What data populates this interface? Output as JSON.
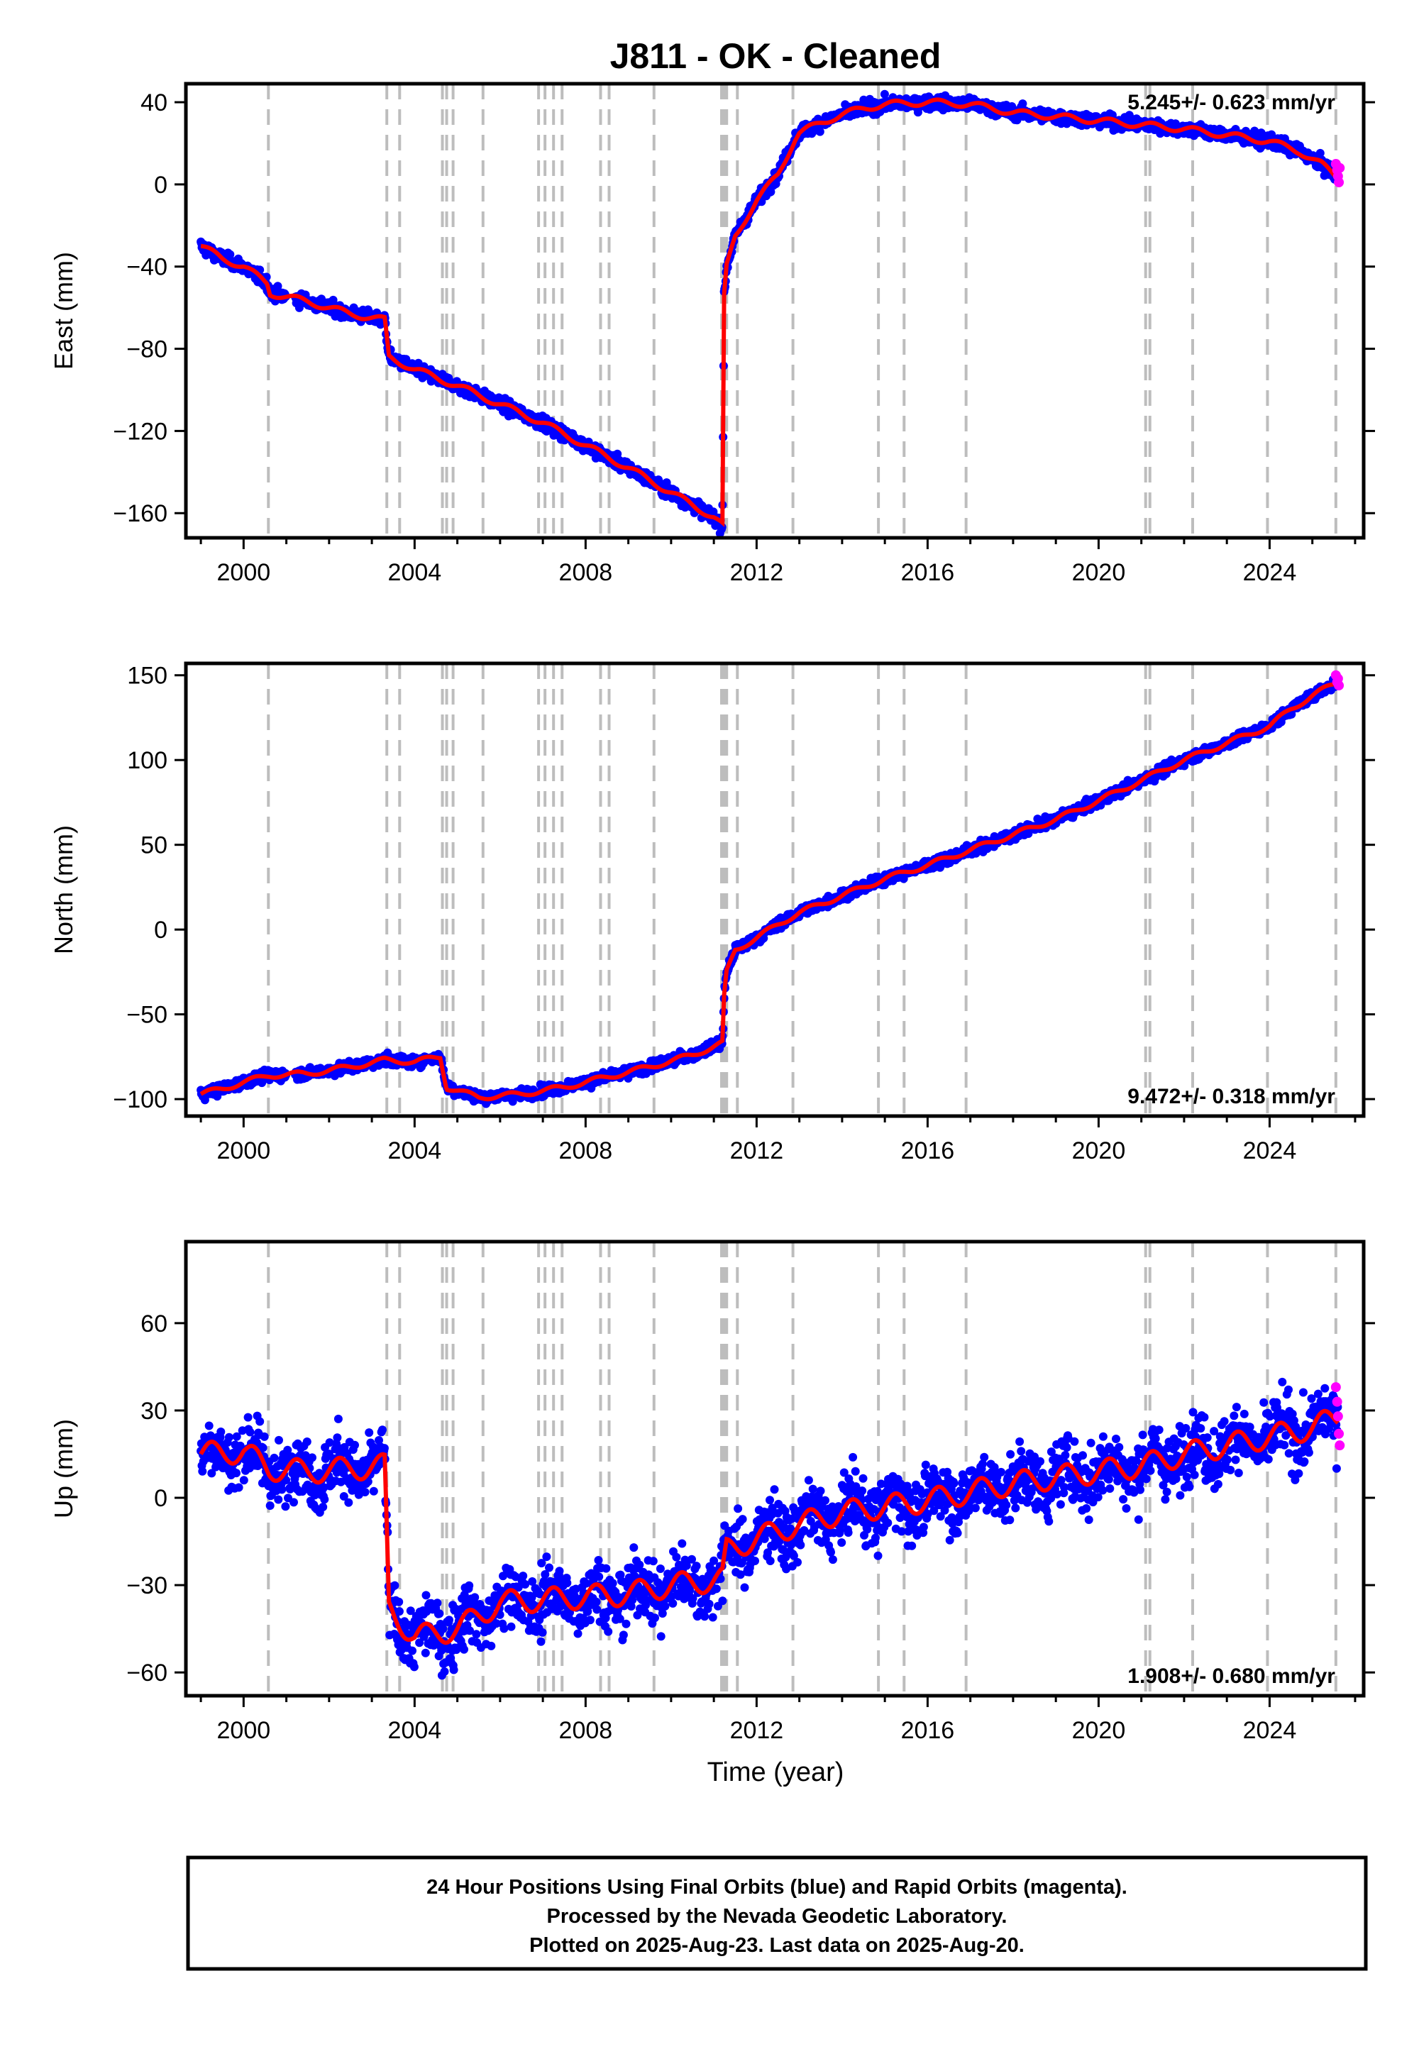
{
  "title": "J811  - OK - Cleaned",
  "xlabel": "Time (year)",
  "colors": {
    "final_orbits": "#0000ff",
    "rapid_orbits": "#ff00ff",
    "model": "#ff0000",
    "event_lines": "#bdbdbd"
  },
  "chart_data": [
    {
      "type": "scatter",
      "panel": "east",
      "ylabel": "East (mm)",
      "xlim": [
        1998.65,
        2026.2
      ],
      "ylim": [
        -172,
        49
      ],
      "xticks": [
        2000,
        2004,
        2008,
        2012,
        2016,
        2020,
        2024
      ],
      "xtick_labels": [
        "2000",
        "2004",
        "2008",
        "2012",
        "2016",
        "2020",
        "2024"
      ],
      "yticks": [
        -160,
        -120,
        -80,
        -40,
        0,
        40
      ],
      "ytick_labels": [
        "−160",
        "−120",
        "−80",
        "−40",
        "0",
        "40"
      ],
      "rate_label": "5.245+/- 0.623 mm/yr",
      "rate_label_position": "top-right",
      "grid": false,
      "series": [
        {
          "x": [
            1999.0,
            1999.5,
            2000.0,
            2000.55,
            2000.62,
            2001.5,
            2002.5,
            2003.3,
            2003.4,
            2004.0,
            2005.0,
            2006.0,
            2007.0,
            2008.0,
            2009.0,
            2010.0,
            2011.0,
            2011.2,
            2011.24,
            2011.3,
            2011.5,
            2012.0,
            2012.5,
            2012.9,
            2013.0,
            2013.5,
            2014.0,
            2014.5,
            2015.0,
            2016.0,
            2017.0,
            2018.0,
            2019.0,
            2020.0,
            2021.0,
            2022.0,
            2023.0,
            2024.0,
            2024.7,
            2025.2,
            2025.6
          ],
          "y": [
            -30,
            -36,
            -40,
            -48,
            -53,
            -57,
            -63,
            -66,
            -84,
            -90,
            -98,
            -107,
            -116,
            -127,
            -138,
            -150,
            -162,
            -166,
            -55,
            -40,
            -25,
            -8,
            5,
            22,
            25,
            30,
            34,
            37,
            39,
            40,
            39,
            35,
            33,
            31,
            29,
            27,
            24,
            21,
            16,
            10,
            3
          ]
        }
      ]
    },
    {
      "type": "scatter",
      "panel": "north",
      "ylabel": "North (mm)",
      "xlim": [
        1998.65,
        2026.2
      ],
      "ylim": [
        -110,
        157
      ],
      "xticks": [
        2000,
        2004,
        2008,
        2012,
        2016,
        2020,
        2024
      ],
      "xtick_labels": [
        "2000",
        "2004",
        "2008",
        "2012",
        "2016",
        "2020",
        "2024"
      ],
      "yticks": [
        -100,
        -50,
        0,
        50,
        100,
        150
      ],
      "ytick_labels": [
        "−100",
        "−50",
        "0",
        "50",
        "100",
        "150"
      ],
      "rate_label": "9.472+/- 0.318 mm/yr",
      "rate_label_position": "bottom-right",
      "grid": false,
      "series": [
        {
          "x": [
            1999.0,
            1999.5,
            2000.0,
            2000.6,
            2001.5,
            2002.5,
            2003.3,
            2004.0,
            2004.6,
            2004.75,
            2005.5,
            2006.5,
            2007.5,
            2008.5,
            2009.5,
            2010.5,
            2011.2,
            2011.24,
            2011.3,
            2011.5,
            2012.0,
            2012.5,
            2013.0,
            2014.0,
            2015.0,
            2016.0,
            2017.0,
            2018.0,
            2019.0,
            2020.0,
            2021.0,
            2022.0,
            2023.0,
            2024.0,
            2024.5,
            2025.0,
            2025.6
          ],
          "y": [
            -97,
            -94,
            -90,
            -86,
            -85,
            -81,
            -77,
            -78,
            -75,
            -93,
            -99,
            -97,
            -93,
            -87,
            -81,
            -74,
            -67,
            -40,
            -25,
            -12,
            -5,
            3,
            10,
            20,
            30,
            38,
            47,
            56,
            65,
            76,
            88,
            100,
            110,
            120,
            130,
            138,
            146
          ]
        }
      ]
    },
    {
      "type": "scatter",
      "panel": "up",
      "ylabel": "Up (mm)",
      "xlim": [
        1998.65,
        2026.2
      ],
      "ylim": [
        -68,
        88
      ],
      "xticks": [
        2000,
        2004,
        2008,
        2012,
        2016,
        2020,
        2024
      ],
      "xtick_labels": [
        "2000",
        "2004",
        "2008",
        "2012",
        "2016",
        "2020",
        "2024"
      ],
      "yticks": [
        -60,
        -30,
        0,
        30,
        60
      ],
      "ytick_labels": [
        "−60",
        "−30",
        "0",
        "30",
        "60"
      ],
      "rate_label": "1.908+/- 0.680 mm/yr",
      "rate_label_position": "bottom-right",
      "grid": false,
      "series": [
        {
          "x": [
            1999.0,
            2000.0,
            2000.6,
            2001.5,
            2002.5,
            2003.3,
            2003.4,
            2004.0,
            2005.0,
            2006.0,
            2007.0,
            2008.0,
            2009.0,
            2010.0,
            2011.2,
            2011.3,
            2012.0,
            2013.0,
            2014.0,
            2015.0,
            2016.0,
            2017.0,
            2018.0,
            2019.0,
            2020.0,
            2021.0,
            2022.0,
            2023.0,
            2024.0,
            2025.0,
            2025.6
          ],
          "y": [
            15,
            16,
            10,
            9,
            10,
            11,
            -38,
            -48,
            -45,
            -36,
            -35,
            -34,
            -33,
            -30,
            -28,
            -18,
            -14,
            -9,
            -5,
            -3,
            -1,
            2,
            5,
            7,
            9,
            11,
            15,
            18,
            21,
            24,
            28
          ]
        }
      ]
    }
  ],
  "event_lines_x": [
    2000.58,
    2003.35,
    2003.65,
    2004.65,
    2004.75,
    2004.9,
    2005.6,
    2006.9,
    2007.05,
    2007.25,
    2007.45,
    2008.35,
    2008.55,
    2009.6,
    2011.18,
    2011.24,
    2011.3,
    2011.55,
    2012.85,
    2014.85,
    2015.45,
    2016.9,
    2021.1,
    2021.2,
    2022.2,
    2023.95,
    2025.55
  ],
  "rapid_orbit_points": {
    "east": [
      [
        2025.55,
        10
      ],
      [
        2025.58,
        7
      ],
      [
        2025.6,
        4
      ],
      [
        2025.62,
        1
      ],
      [
        2025.64,
        8
      ]
    ],
    "north": [
      [
        2025.55,
        150
      ],
      [
        2025.58,
        146
      ],
      [
        2025.6,
        148
      ],
      [
        2025.62,
        144
      ]
    ],
    "up": [
      [
        2025.55,
        38
      ],
      [
        2025.58,
        33
      ],
      [
        2025.6,
        28
      ],
      [
        2025.62,
        22
      ],
      [
        2025.64,
        18
      ]
    ]
  },
  "footer": {
    "line1": "24 Hour Positions Using Final Orbits (blue) and Rapid Orbits (magenta).",
    "line2": "Processed by the Nevada Geodetic Laboratory.",
    "line3": "Plotted on 2025-Aug-23. Last data on 2025-Aug-20."
  }
}
